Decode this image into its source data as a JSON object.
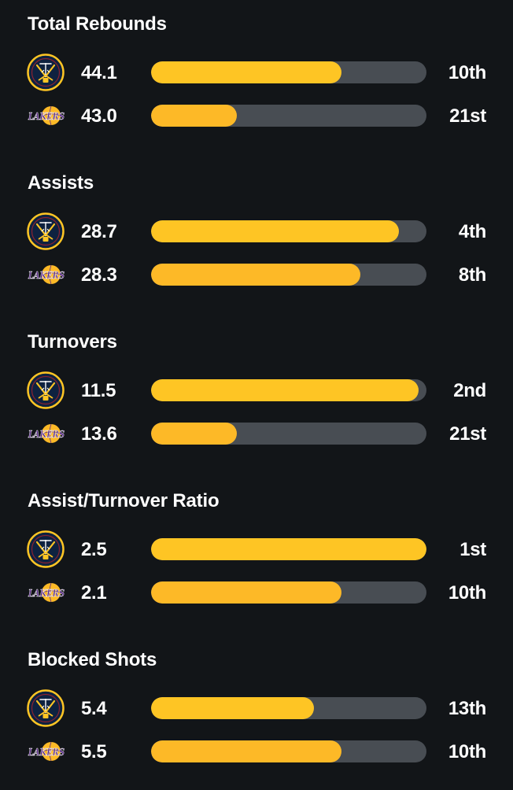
{
  "colors": {
    "background": "#121518",
    "bar_track": "#484d53",
    "nuggets_fill": "#fec524",
    "lakers_fill": "#fdb927",
    "nuggets_navy": "#0e2240",
    "lakers_purple": "#552583"
  },
  "teams": {
    "nuggets": {
      "logo_icon": "nuggets-logo-icon"
    },
    "lakers": {
      "logo_icon": "lakers-logo-icon",
      "logo_text": "LAKERS"
    }
  },
  "sections": [
    {
      "title": "Total Rebounds",
      "rows": [
        {
          "team": "nuggets",
          "value": "44.1",
          "rank": "10th",
          "bar_fraction": 0.69
        },
        {
          "team": "lakers",
          "value": "43.0",
          "rank": "21st",
          "bar_fraction": 0.31
        }
      ]
    },
    {
      "title": "Assists",
      "rows": [
        {
          "team": "nuggets",
          "value": "28.7",
          "rank": "4th",
          "bar_fraction": 0.9
        },
        {
          "team": "lakers",
          "value": "28.3",
          "rank": "8th",
          "bar_fraction": 0.76
        }
      ]
    },
    {
      "title": "Turnovers",
      "rows": [
        {
          "team": "nuggets",
          "value": "11.5",
          "rank": "2nd",
          "bar_fraction": 0.97
        },
        {
          "team": "lakers",
          "value": "13.6",
          "rank": "21st",
          "bar_fraction": 0.31
        }
      ]
    },
    {
      "title": "Assist/Turnover Ratio",
      "rows": [
        {
          "team": "nuggets",
          "value": "2.5",
          "rank": "1st",
          "bar_fraction": 1.0
        },
        {
          "team": "lakers",
          "value": "2.1",
          "rank": "10th",
          "bar_fraction": 0.69
        }
      ]
    },
    {
      "title": "Blocked Shots",
      "rows": [
        {
          "team": "nuggets",
          "value": "5.4",
          "rank": "13th",
          "bar_fraction": 0.59
        },
        {
          "team": "lakers",
          "value": "5.5",
          "rank": "10th",
          "bar_fraction": 0.69
        }
      ]
    }
  ]
}
